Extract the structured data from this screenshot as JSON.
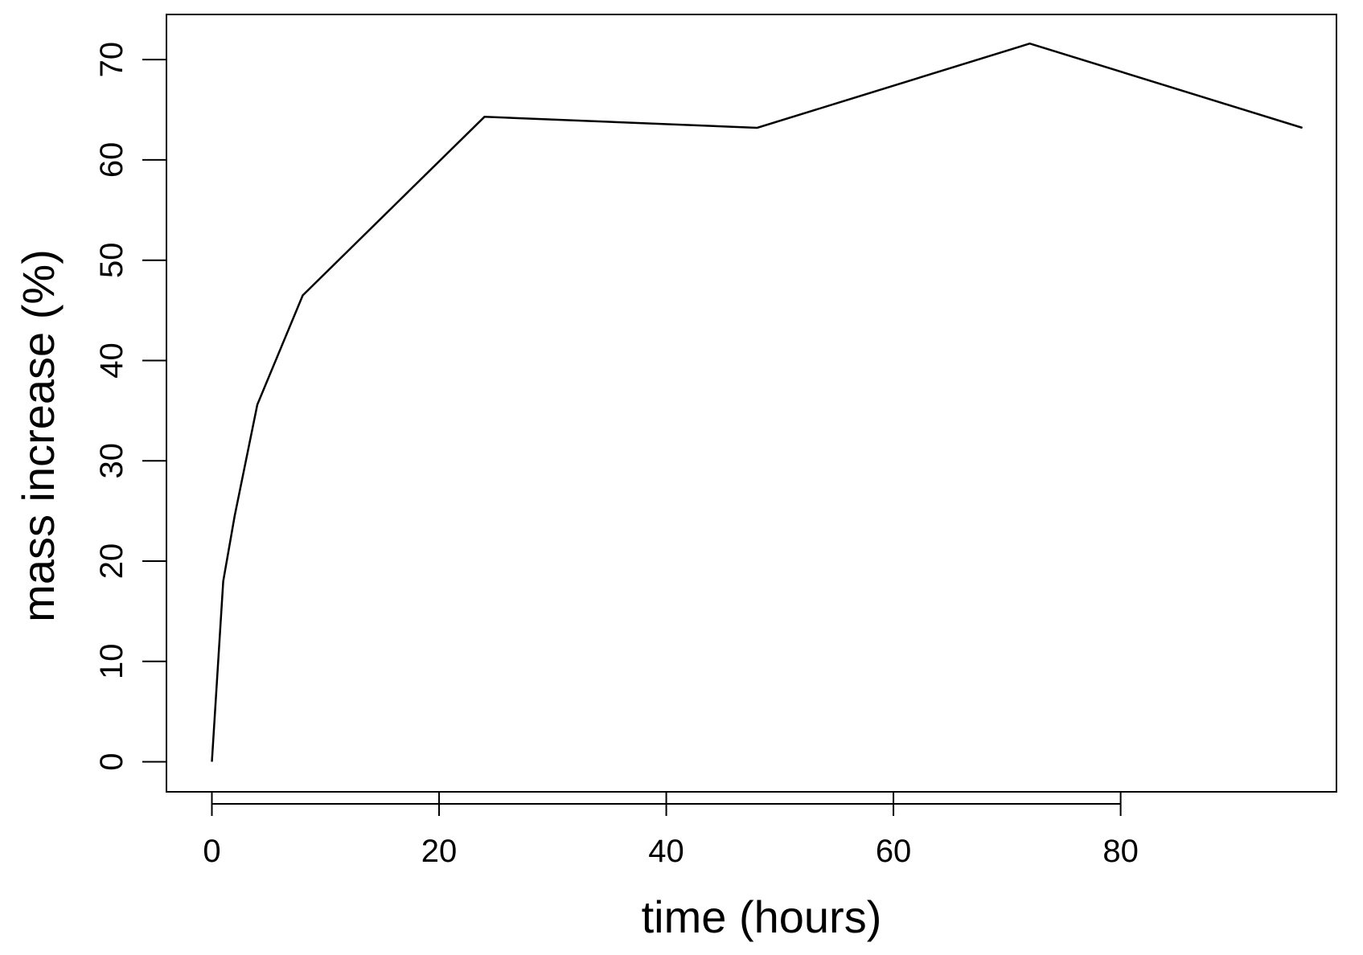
{
  "chart_data": {
    "type": "line",
    "title": "",
    "xlabel": "time (hours)",
    "ylabel": "mass increase (%)",
    "xlim": [
      -4,
      99
    ],
    "ylim": [
      -3,
      74.5
    ],
    "xticks": [
      0,
      20,
      40,
      60,
      80
    ],
    "yticks": [
      0,
      10,
      20,
      30,
      40,
      50,
      60,
      70
    ],
    "grid": false,
    "legend": "none",
    "series": [
      {
        "color": "#000000",
        "x": [
          0,
          1,
          2,
          4,
          8,
          24,
          48,
          72,
          96
        ],
        "y": [
          0,
          18,
          24.5,
          35.6,
          46.5,
          64.3,
          63.2,
          71.6,
          63.2
        ]
      }
    ]
  }
}
